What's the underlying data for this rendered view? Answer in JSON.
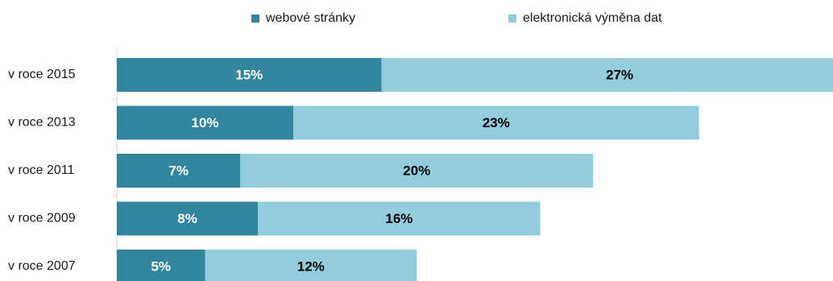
{
  "chart_data": {
    "type": "bar",
    "orientation": "horizontal",
    "stacked": true,
    "categories": [
      "v roce 2015",
      "v roce 2013",
      "v roce 2011",
      "v roce 2009",
      "v roce 2007"
    ],
    "series": [
      {
        "name": "webové stránky",
        "color": "#31859c",
        "values": [
          15,
          10,
          7,
          8,
          5
        ],
        "labels": [
          "15%",
          "10%",
          "7%",
          "8%",
          "5%"
        ]
      },
      {
        "name": "elektronická výměna dat",
        "color": "#93cddd",
        "values": [
          27,
          23,
          20,
          16,
          12
        ],
        "labels": [
          "27%",
          "23%",
          "20%",
          "16%",
          "12%"
        ]
      }
    ],
    "legend": "top",
    "grid": false
  }
}
